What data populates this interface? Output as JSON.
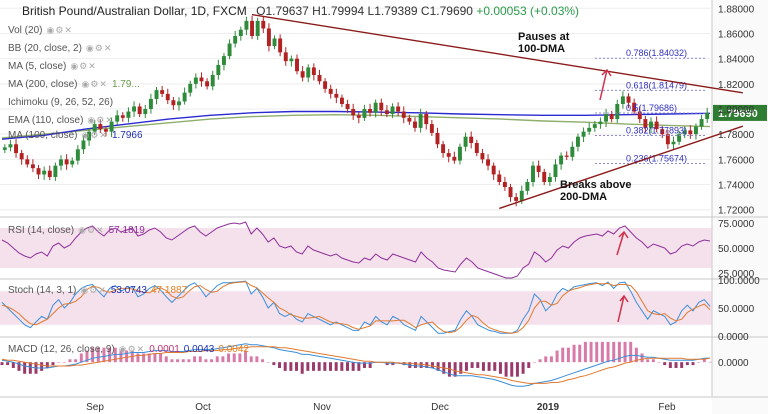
{
  "header": {
    "title": "British Pound/Australian Dollar, 1D, FXCM",
    "ohlc": "O1.79637  H1.79994  L1.79389  C1.79690",
    "change": "+0.00053 (+0.03%)"
  },
  "indicators": {
    "vol": "Vol (20)",
    "bb": "BB (20, close, 2)",
    "ma5": "MA (5, close)",
    "ma200": "MA (200, close)",
    "ma200_val": "1.79...",
    "ichimoku": "Ichimoku (9, 26, 52, 26)",
    "ema110": "EMA (110, close)",
    "ma100": "MA (100, close)",
    "ma100_val": "1.7966"
  },
  "annotations": {
    "pauses": "Pauses at\n100-DMA",
    "breaks": "Breaks above\n200-DMA",
    "price_tag": "1.79690"
  },
  "colors": {
    "up": "#2e8b3a",
    "down": "#b22222",
    "trend": "#8b1a1a",
    "ma100": "#2a2ad0",
    "ma200": "#8fae6b",
    "fib": "#3030c0",
    "rsi": "#8e2f9a",
    "stoch_k": "#3b8fd8",
    "stoch_d": "#e07a30",
    "band": "#ecc8dc",
    "price_tag_bg": "#2e7d32"
  },
  "chart_data": {
    "type": "candlestick",
    "title": "British Pound/Australian Dollar, 1D, FXCM",
    "x_labels": [
      "Sep",
      "Oct",
      "Nov",
      "Dec",
      "2019",
      "Feb"
    ],
    "y_ticks": [
      "1.88000",
      "1.86000",
      "1.84000",
      "1.82000",
      "1.80000",
      "1.78000",
      "1.76000",
      "1.74000",
      "1.72000"
    ],
    "ylim": [
      1.715,
      1.885
    ],
    "closes": [
      1.7695,
      1.772,
      1.765,
      1.76,
      1.756,
      1.753,
      1.748,
      1.751,
      1.746,
      1.755,
      1.76,
      1.756,
      1.759,
      1.768,
      1.775,
      1.782,
      1.788,
      1.784,
      1.782,
      1.79,
      1.795,
      1.793,
      1.798,
      1.802,
      1.796,
      1.8,
      1.808,
      1.815,
      1.812,
      1.807,
      1.803,
      1.806,
      1.813,
      1.82,
      1.825,
      1.822,
      1.818,
      1.827,
      1.835,
      1.842,
      1.852,
      1.858,
      1.863,
      1.87,
      1.858,
      1.87,
      1.864,
      1.85,
      1.856,
      1.845,
      1.838,
      1.84,
      1.83,
      1.825,
      1.833,
      1.827,
      1.822,
      1.816,
      1.812,
      1.809,
      1.804,
      1.8,
      1.795,
      1.793,
      1.8,
      1.797,
      1.805,
      1.799,
      1.796,
      1.802,
      1.798,
      1.793,
      1.79,
      1.785,
      1.796,
      1.788,
      1.781,
      1.772,
      1.765,
      1.762,
      1.759,
      1.77,
      1.778,
      1.773,
      1.765,
      1.76,
      1.755,
      1.748,
      1.742,
      1.738,
      1.73,
      1.727,
      1.735,
      1.742,
      1.755,
      1.75,
      1.742,
      1.746,
      1.756,
      1.763,
      1.762,
      1.77,
      1.778,
      1.782,
      1.785,
      1.788,
      1.79,
      1.796,
      1.792,
      1.804,
      1.81,
      1.805,
      1.798,
      1.792,
      1.785,
      1.79,
      1.784,
      1.78,
      1.772,
      1.774,
      1.78,
      1.783,
      1.78,
      1.786,
      1.792,
      1.7969
    ],
    "ma100": [
      1.776,
      1.779,
      1.784,
      1.788,
      1.792,
      1.795,
      1.797,
      1.798,
      1.798,
      1.7975,
      1.797,
      1.796,
      1.7955,
      1.795,
      1.795,
      1.7955,
      1.796,
      1.7966
    ],
    "ma200": [
      1.777,
      1.78,
      1.783,
      1.786,
      1.789,
      1.792,
      1.794,
      1.795,
      1.7955,
      1.795,
      1.794,
      1.793,
      1.792,
      1.7905,
      1.7895,
      1.788,
      1.787,
      1.786
    ],
    "trendlines": [
      {
        "name": "upper",
        "from": [
          44,
          1.875
        ],
        "to": [
          126,
          1.816
        ]
      },
      {
        "name": "lower",
        "from": [
          88,
          1.721
        ],
        "to": [
          126,
          1.78
        ]
      }
    ],
    "fib_levels": [
      {
        "label": "0.786(1.84032)",
        "value": 1.84032
      },
      {
        "label": "0.618(1.81479)",
        "value": 1.81479
      },
      {
        "label": "0.5(1.79686)",
        "value": 1.79686
      },
      {
        "label": "0.382(1.77893)",
        "value": 1.77893
      },
      {
        "label": "0.236(1.75674)",
        "value": 1.75674
      }
    ],
    "rsi": {
      "label": "RSI (14, close)",
      "value_label": "57.1819",
      "ticks": [
        "75.0000",
        "50.0000",
        "25.0000"
      ],
      "ylim": [
        20,
        80
      ],
      "band": [
        30,
        70
      ],
      "values": [
        58,
        55,
        50,
        45,
        42,
        40,
        44,
        46,
        42,
        52,
        55,
        50,
        53,
        60,
        66,
        70,
        72,
        66,
        62,
        68,
        70,
        66,
        68,
        70,
        62,
        64,
        68,
        70,
        66,
        60,
        58,
        62,
        66,
        70,
        72,
        66,
        62,
        66,
        70,
        72,
        74,
        75,
        74,
        76,
        64,
        70,
        64,
        56,
        60,
        52,
        50,
        52,
        46,
        44,
        52,
        48,
        46,
        44,
        42,
        44,
        40,
        38,
        36,
        35,
        40,
        38,
        44,
        40,
        38,
        44,
        42,
        40,
        38,
        36,
        46,
        40,
        36,
        30,
        28,
        27,
        26,
        34,
        40,
        36,
        30,
        28,
        26,
        24,
        22,
        20,
        20,
        22,
        30,
        34,
        46,
        42,
        36,
        40,
        48,
        52,
        50,
        56,
        60,
        62,
        63,
        64,
        62,
        67,
        64,
        70,
        72,
        66,
        60,
        56,
        50,
        54,
        52,
        50,
        44,
        46,
        52,
        54,
        52,
        56,
        58,
        57
      ]
    },
    "stoch": {
      "label": "Stoch (14, 3, 1)",
      "k_label": "53.0743",
      "d_label": "47.1887",
      "ticks": [
        "100.0000",
        "50.0000",
        "0.0000"
      ],
      "ylim": [
        0,
        100
      ],
      "band": [
        20,
        80
      ],
      "k": [
        60,
        50,
        40,
        30,
        20,
        15,
        25,
        35,
        30,
        55,
        65,
        50,
        60,
        75,
        85,
        90,
        92,
        80,
        70,
        85,
        90,
        80,
        85,
        88,
        70,
        75,
        85,
        90,
        82,
        70,
        60,
        70,
        80,
        90,
        95,
        85,
        70,
        80,
        90,
        95,
        95,
        96,
        97,
        98,
        75,
        85,
        70,
        50,
        60,
        40,
        35,
        40,
        30,
        25,
        40,
        35,
        30,
        25,
        20,
        25,
        20,
        15,
        10,
        10,
        25,
        20,
        35,
        25,
        20,
        35,
        30,
        20,
        15,
        10,
        35,
        25,
        15,
        5,
        5,
        8,
        10,
        30,
        45,
        35,
        20,
        15,
        10,
        8,
        5,
        5,
        5,
        10,
        30,
        45,
        75,
        65,
        45,
        55,
        75,
        85,
        80,
        88,
        90,
        92,
        94,
        95,
        90,
        96,
        85,
        95,
        96,
        80,
        60,
        45,
        30,
        45,
        40,
        35,
        20,
        25,
        45,
        55,
        45,
        60,
        65,
        53
      ],
      "d": [
        55,
        52,
        47,
        40,
        30,
        22,
        20,
        25,
        30,
        40,
        50,
        57,
        58,
        62,
        70,
        83,
        89,
        87,
        81,
        78,
        82,
        85,
        85,
        84,
        81,
        78,
        77,
        83,
        86,
        81,
        71,
        67,
        70,
        80,
        88,
        90,
        83,
        78,
        80,
        88,
        93,
        95,
        96,
        97,
        90,
        86,
        77,
        68,
        60,
        50,
        45,
        38,
        35,
        32,
        32,
        33,
        35,
        30,
        25,
        23,
        22,
        20,
        15,
        12,
        15,
        18,
        27,
        27,
        27,
        27,
        28,
        28,
        22,
        15,
        20,
        23,
        25,
        15,
        8,
        6,
        8,
        16,
        28,
        37,
        33,
        23,
        15,
        11,
        8,
        6,
        5,
        7,
        15,
        28,
        50,
        62,
        62,
        55,
        58,
        72,
        80,
        84,
        86,
        90,
        92,
        94,
        93,
        94,
        90,
        92,
        92,
        90,
        79,
        62,
        45,
        40,
        38,
        40,
        32,
        27,
        30,
        42,
        48,
        53,
        57,
        47
      ]
    },
    "macd": {
      "label": "MACD (12, 26, close, 9)",
      "hist_label": "0.0001",
      "macd_label": "0.0043",
      "signal_label": "0.0042",
      "ticks": [
        "0.0000"
      ],
      "ylim": [
        -0.035,
        0.025
      ],
      "macd": [
        0.002,
        0.001,
        0.0,
        -0.002,
        -0.004,
        -0.005,
        -0.006,
        -0.006,
        -0.006,
        -0.005,
        -0.004,
        -0.004,
        -0.003,
        -0.002,
        0.0,
        0.002,
        0.004,
        0.005,
        0.006,
        0.007,
        0.008,
        0.008,
        0.009,
        0.01,
        0.01,
        0.01,
        0.011,
        0.012,
        0.012,
        0.012,
        0.011,
        0.011,
        0.011,
        0.012,
        0.013,
        0.013,
        0.013,
        0.013,
        0.014,
        0.015,
        0.016,
        0.017,
        0.018,
        0.019,
        0.018,
        0.018,
        0.017,
        0.016,
        0.015,
        0.013,
        0.012,
        0.011,
        0.01,
        0.008,
        0.008,
        0.007,
        0.006,
        0.005,
        0.004,
        0.003,
        0.002,
        0.001,
        0.0,
        -0.001,
        -0.001,
        -0.001,
        0.0,
        0.0,
        -0.001,
        -0.001,
        -0.001,
        -0.002,
        -0.003,
        -0.004,
        -0.004,
        -0.005,
        -0.006,
        -0.008,
        -0.01,
        -0.012,
        -0.014,
        -0.014,
        -0.014,
        -0.014,
        -0.015,
        -0.016,
        -0.017,
        -0.018,
        -0.02,
        -0.022,
        -0.024,
        -0.025,
        -0.025,
        -0.024,
        -0.022,
        -0.021,
        -0.02,
        -0.019,
        -0.017,
        -0.015,
        -0.013,
        -0.011,
        -0.009,
        -0.007,
        -0.005,
        -0.003,
        -0.001,
        0.001,
        0.002,
        0.004,
        0.006,
        0.007,
        0.007,
        0.006,
        0.005,
        0.005,
        0.004,
        0.003,
        0.002,
        0.002,
        0.002,
        0.002,
        0.002,
        0.003,
        0.004,
        0.0043
      ],
      "signal": [
        0.003,
        0.002,
        0.002,
        0.001,
        0.0,
        -0.001,
        -0.002,
        -0.003,
        -0.004,
        -0.004,
        -0.004,
        -0.004,
        -0.004,
        -0.003,
        -0.003,
        -0.002,
        -0.001,
        0.0,
        0.001,
        0.002,
        0.003,
        0.004,
        0.005,
        0.006,
        0.007,
        0.007,
        0.008,
        0.009,
        0.009,
        0.01,
        0.01,
        0.01,
        0.01,
        0.011,
        0.011,
        0.011,
        0.012,
        0.012,
        0.012,
        0.013,
        0.013,
        0.014,
        0.015,
        0.015,
        0.016,
        0.016,
        0.016,
        0.016,
        0.016,
        0.015,
        0.015,
        0.014,
        0.013,
        0.012,
        0.011,
        0.01,
        0.009,
        0.008,
        0.007,
        0.006,
        0.005,
        0.004,
        0.003,
        0.002,
        0.001,
        0.001,
        0.0,
        0.0,
        0.0,
        0.0,
        -0.001,
        -0.001,
        -0.001,
        -0.002,
        -0.002,
        -0.003,
        -0.004,
        -0.005,
        -0.006,
        -0.007,
        -0.009,
        -0.01,
        -0.011,
        -0.012,
        -0.013,
        -0.013,
        -0.014,
        -0.015,
        -0.016,
        -0.017,
        -0.019,
        -0.02,
        -0.021,
        -0.022,
        -0.022,
        -0.022,
        -0.022,
        -0.021,
        -0.021,
        -0.02,
        -0.018,
        -0.017,
        -0.015,
        -0.014,
        -0.012,
        -0.01,
        -0.008,
        -0.006,
        -0.005,
        -0.003,
        -0.001,
        0.0,
        0.002,
        0.003,
        0.004,
        0.004,
        0.004,
        0.004,
        0.004,
        0.004,
        0.004,
        0.003,
        0.003,
        0.003,
        0.003,
        0.0042
      ]
    }
  }
}
